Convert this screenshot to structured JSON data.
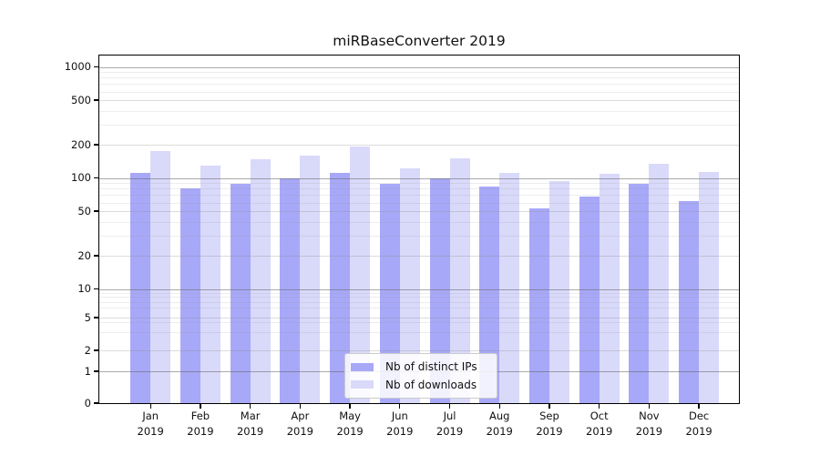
{
  "chart_data": {
    "type": "bar",
    "title": "miRBaseConverter 2019",
    "yscale": "symlog",
    "ylabel": "",
    "xlabel": "",
    "ylim": [
      0,
      1300
    ],
    "grid": "horizontal, major and minor, drawn over bars",
    "legend_position": "lower center",
    "y_ticks": [
      "1000",
      "500",
      "200",
      "100",
      "50",
      "20",
      "10",
      "5",
      "2",
      "1",
      "0"
    ],
    "categories": [
      "Jan 2019",
      "Feb 2019",
      "Mar 2019",
      "Apr 2019",
      "May 2019",
      "Jun 2019",
      "Jul 2019",
      "Aug 2019",
      "Sep 2019",
      "Oct 2019",
      "Nov 2019",
      "Dec 2019"
    ],
    "months": [
      {
        "label": "Jan",
        "year": "2019"
      },
      {
        "label": "Feb",
        "year": "2019"
      },
      {
        "label": "Mar",
        "year": "2019"
      },
      {
        "label": "Apr",
        "year": "2019"
      },
      {
        "label": "May",
        "year": "2019"
      },
      {
        "label": "Jun",
        "year": "2019"
      },
      {
        "label": "Jul",
        "year": "2019"
      },
      {
        "label": "Aug",
        "year": "2019"
      },
      {
        "label": "Sep",
        "year": "2019"
      },
      {
        "label": "Oct",
        "year": "2019"
      },
      {
        "label": "Nov",
        "year": "2019"
      },
      {
        "label": "Dec",
        "year": "2019"
      }
    ],
    "series": [
      {
        "name": "Nb of distinct IPs",
        "color": "#a8a8f8",
        "values": [
          110,
          80,
          88,
          100,
          110,
          88,
          100,
          84,
          53,
          68,
          88,
          62
        ]
      },
      {
        "name": "Nb of downloads",
        "color": "#d9d9fa",
        "values": [
          175,
          128,
          148,
          160,
          190,
          122,
          150,
          110,
          93,
          108,
          135,
          113
        ]
      }
    ]
  },
  "colors": {
    "axis": "#000000",
    "text": "#111111",
    "grid_decade": "#a9a9a9",
    "grid_minor": "#e8e8e8",
    "legend_border": "#cccccc",
    "background": "#ffffff"
  }
}
